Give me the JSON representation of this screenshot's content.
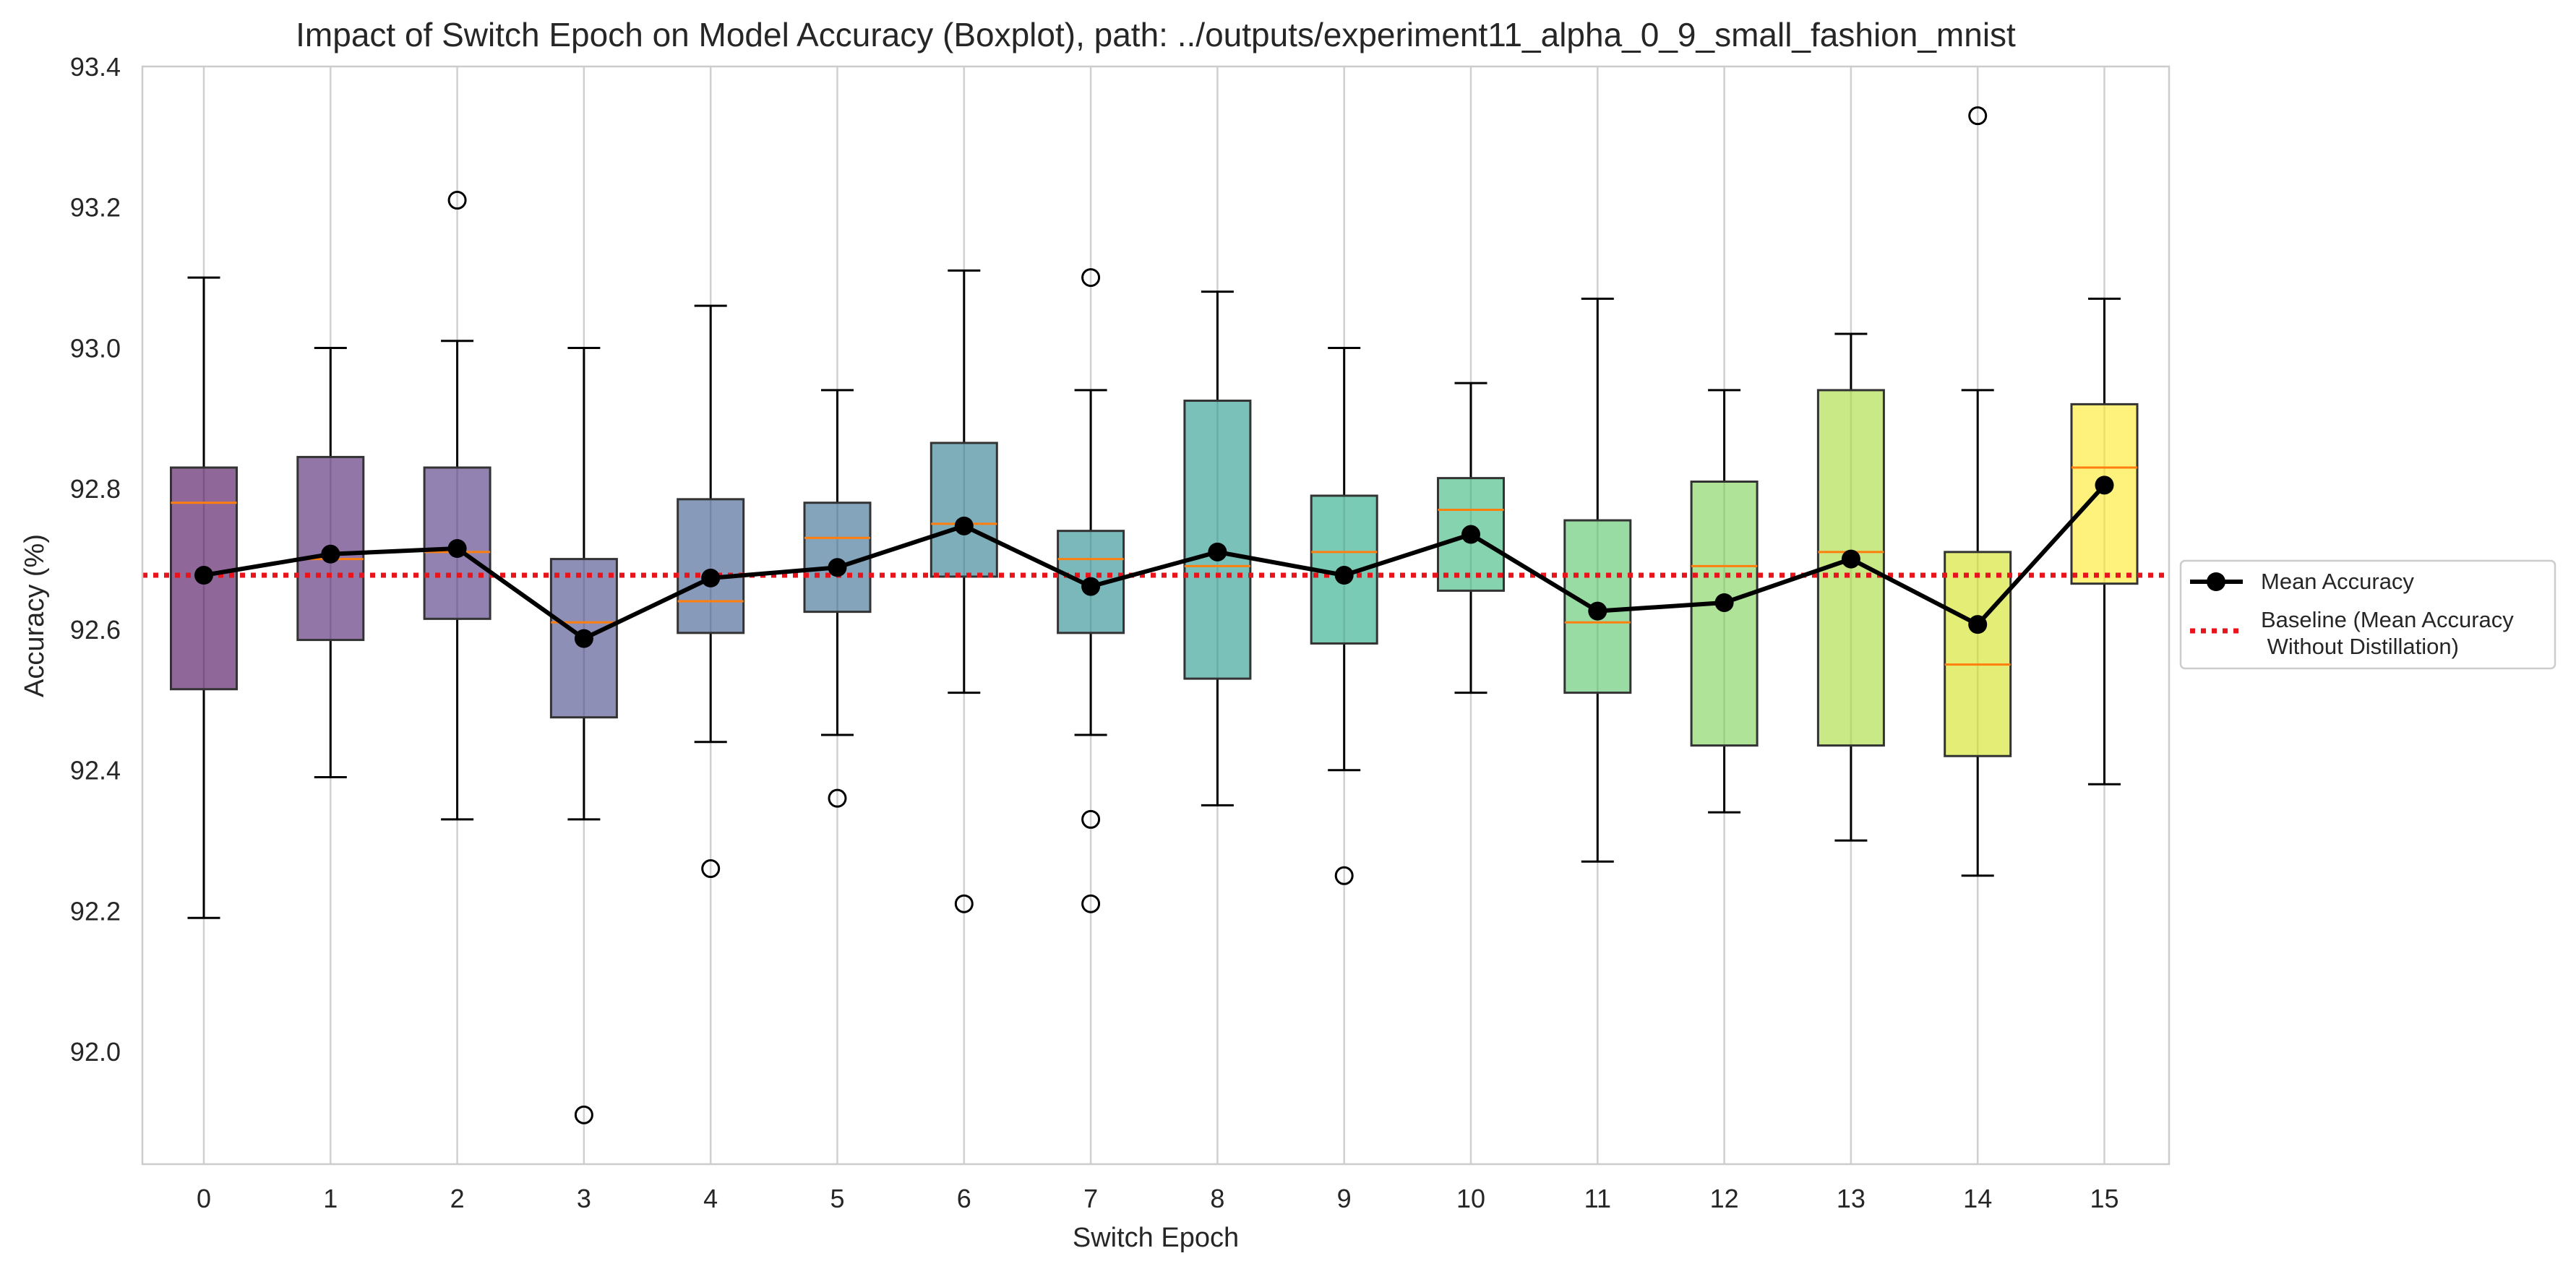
{
  "chart_data": {
    "type": "boxplot",
    "title": "Impact of Switch Epoch on Model Accuracy (Boxplot), path: ../outputs/experiment11_alpha_0_9_small_fashion_mnist",
    "xlabel": "Switch Epoch",
    "ylabel": "Accuracy (%)",
    "categories": [
      "0",
      "1",
      "2",
      "3",
      "4",
      "5",
      "6",
      "7",
      "8",
      "9",
      "10",
      "11",
      "12",
      "13",
      "14",
      "15"
    ],
    "ylim": [
      91.84,
      93.4
    ],
    "yticks": [
      "92.0",
      "92.2",
      "92.4",
      "92.6",
      "92.8",
      "93.0",
      "93.2",
      "93.4"
    ],
    "ytick_values": [
      92.0,
      92.2,
      92.4,
      92.6,
      92.8,
      93.0,
      93.2,
      93.4
    ],
    "grid": "vertical",
    "legend_position": "center-right, outside",
    "boxes": [
      {
        "category": "0",
        "whisker_low": 92.19,
        "q1": 92.515,
        "median": 92.78,
        "q3": 92.83,
        "whisker_high": 93.1,
        "outliers": [],
        "color": "#440154"
      },
      {
        "category": "1",
        "whisker_low": 92.39,
        "q1": 92.585,
        "median": 92.7,
        "q3": 92.845,
        "whisker_high": 93.0,
        "outliers": [],
        "color": "#481a6c"
      },
      {
        "category": "2",
        "whisker_low": 92.33,
        "q1": 92.615,
        "median": 92.71,
        "q3": 92.83,
        "whisker_high": 93.01,
        "outliers": [
          93.21
        ],
        "color": "#472f7d"
      },
      {
        "category": "3",
        "whisker_low": 92.33,
        "q1": 92.475,
        "median": 92.61,
        "q3": 92.7,
        "whisker_high": 93.0,
        "outliers": [
          91.91
        ],
        "color": "#414487"
      },
      {
        "category": "4",
        "whisker_low": 92.44,
        "q1": 92.595,
        "median": 92.64,
        "q3": 92.785,
        "whisker_high": 93.06,
        "outliers": [
          92.26
        ],
        "color": "#39568c"
      },
      {
        "category": "5",
        "whisker_low": 92.45,
        "q1": 92.625,
        "median": 92.73,
        "q3": 92.78,
        "whisker_high": 92.94,
        "outliers": [
          92.36
        ],
        "color": "#31688e"
      },
      {
        "category": "6",
        "whisker_low": 92.51,
        "q1": 92.675,
        "median": 92.75,
        "q3": 92.865,
        "whisker_high": 93.11,
        "outliers": [
          92.21
        ],
        "color": "#2a788e"
      },
      {
        "category": "7",
        "whisker_low": 92.45,
        "q1": 92.595,
        "median": 92.7,
        "q3": 92.74,
        "whisker_high": 92.94,
        "outliers": [
          93.1,
          92.33,
          92.21
        ],
        "color": "#23888e"
      },
      {
        "category": "8",
        "whisker_low": 92.35,
        "q1": 92.53,
        "median": 92.69,
        "q3": 92.925,
        "whisker_high": 93.08,
        "outliers": [],
        "color": "#1f988b"
      },
      {
        "category": "9",
        "whisker_low": 92.4,
        "q1": 92.58,
        "median": 92.71,
        "q3": 92.79,
        "whisker_high": 93.0,
        "outliers": [
          92.25
        ],
        "color": "#22a884"
      },
      {
        "category": "10",
        "whisker_low": 92.51,
        "q1": 92.655,
        "median": 92.77,
        "q3": 92.815,
        "whisker_high": 92.95,
        "outliers": [],
        "color": "#35b779"
      },
      {
        "category": "11",
        "whisker_low": 92.27,
        "q1": 92.51,
        "median": 92.61,
        "q3": 92.755,
        "whisker_high": 93.07,
        "outliers": [],
        "color": "#54c568"
      },
      {
        "category": "12",
        "whisker_low": 92.34,
        "q1": 92.435,
        "median": 92.69,
        "q3": 92.81,
        "whisker_high": 92.94,
        "outliers": [],
        "color": "#7ad151"
      },
      {
        "category": "13",
        "whisker_low": 92.3,
        "q1": 92.435,
        "median": 92.71,
        "q3": 92.94,
        "whisker_high": 93.02,
        "outliers": [],
        "color": "#a5db36"
      },
      {
        "category": "14",
        "whisker_low": 92.25,
        "q1": 92.42,
        "median": 92.55,
        "q3": 92.71,
        "whisker_high": 92.94,
        "outliers": [
          93.33
        ],
        "color": "#d2e21b"
      },
      {
        "category": "15",
        "whisker_low": 92.38,
        "q1": 92.665,
        "median": 92.83,
        "q3": 92.92,
        "whisker_high": 93.07,
        "outliers": [],
        "color": "#fde725"
      }
    ],
    "series": [
      {
        "name": "Mean Accuracy",
        "type": "line",
        "marker": "circle",
        "color": "#000000",
        "values": [
          92.677,
          92.707,
          92.715,
          92.587,
          92.673,
          92.688,
          92.747,
          92.661,
          92.71,
          92.677,
          92.735,
          92.626,
          92.638,
          92.7,
          92.607,
          92.805
        ]
      },
      {
        "name": "Baseline (Mean Accuracy\n Without Distillation)",
        "type": "hline",
        "style": "dotted",
        "color": "#e8141b",
        "value": 92.677
      }
    ],
    "legend": [
      "Mean Accuracy",
      "Baseline (Mean Accuracy",
      " Without Distillation)"
    ],
    "median_color": "#ff7f0e"
  }
}
